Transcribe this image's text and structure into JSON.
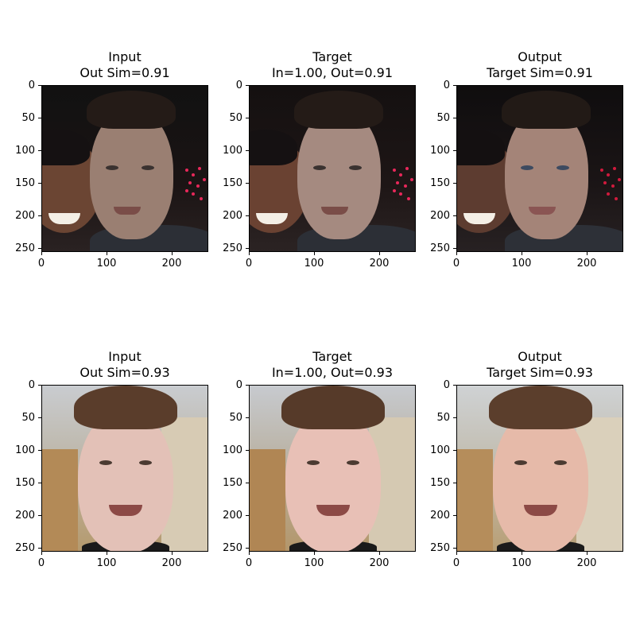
{
  "panels": [
    {
      "title": [
        "Input",
        "Out Sim=0.91"
      ],
      "image": "face-1-input"
    },
    {
      "title": [
        "Target",
        "In=1.00, Out=0.91"
      ],
      "image": "face-1-target"
    },
    {
      "title": [
        "Output",
        "Target Sim=0.91"
      ],
      "image": "face-1-output"
    },
    {
      "title": [
        "Input",
        "Out Sim=0.93"
      ],
      "image": "face-2-input"
    },
    {
      "title": [
        "Target",
        "In=1.00, Out=0.93"
      ],
      "image": "face-2-target"
    },
    {
      "title": [
        "Output",
        "Target Sim=0.93"
      ],
      "image": "face-2-output"
    }
  ],
  "axes": {
    "yticks": [
      "0",
      "50",
      "100",
      "150",
      "200",
      "250"
    ],
    "xticks": [
      "0",
      "100",
      "200"
    ]
  }
}
